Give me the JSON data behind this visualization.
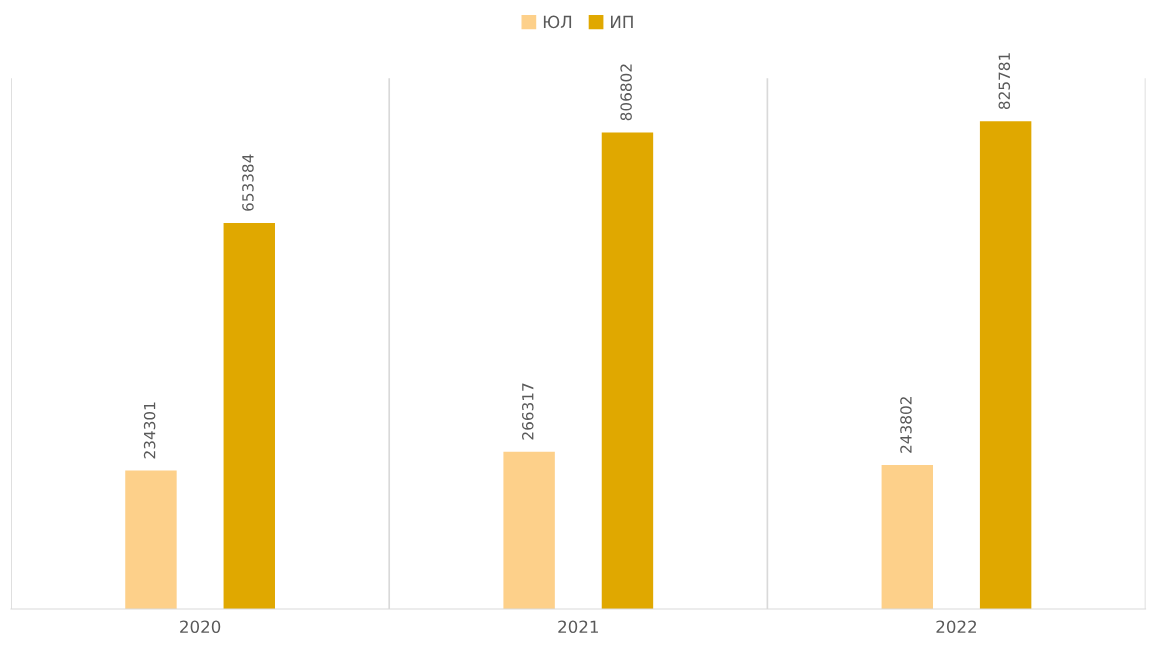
{
  "chart_data": {
    "type": "bar",
    "categories": [
      "2020",
      "2021",
      "2022"
    ],
    "series": [
      {
        "name": "ЮЛ",
        "color": "#fdd08a",
        "values": [
          234301,
          266317,
          243802
        ]
      },
      {
        "name": "ИП",
        "color": "#e0a800",
        "values": [
          653384,
          806802,
          825781
        ]
      }
    ],
    "data_labels": true,
    "legend": "top",
    "grid": "x",
    "tick_labels": "x"
  }
}
